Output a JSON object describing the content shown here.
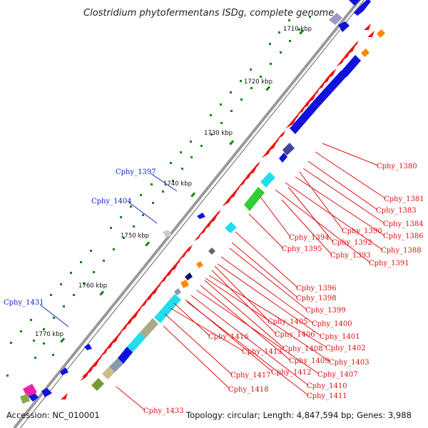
{
  "title": "Clostridium phytofermentans ISDg, complete genome",
  "footer": {
    "accession": "Accession: NC_010001",
    "summary": "Topology: circular; Length: 4,847,594 bp; Genes: 3,988"
  },
  "kbp_ticks": [
    "1710 kbp",
    "1720 kbp",
    "1730 kbp",
    "1740 kbp",
    "1750 kbp",
    "1760 kbp",
    "1770 kbp"
  ],
  "colors": {
    "forward_gene": "#ee1111",
    "reverse_gene": "#1111dd",
    "rna": "#22ddee",
    "label_forward": "#dd1111",
    "label_reverse": "#1122cc",
    "backbone": "#999999",
    "gc_dots": "#118811"
  },
  "genes_left": [
    "Cphy_1397",
    "Cphy_1404",
    "Cphy_1431"
  ],
  "genes_right": [
    "Cphy_1380",
    "Cphy_1381",
    "Cphy_1383",
    "Cphy_1384",
    "Cphy_1390",
    "Cphy_1386",
    "Cphy_1394",
    "Cphy_1392",
    "Cphy_1388",
    "Cphy_1395",
    "Cphy_1393",
    "Cphy_1391",
    "Cphy_1396",
    "Cphy_1398",
    "Cphy_1399",
    "Cphy_1405",
    "Cphy_1400",
    "Cphy_1406",
    "Cphy_1401",
    "Cphy_1416",
    "Cphy_1408",
    "Cphy_1402",
    "Cphy_1413",
    "Cphy_1409",
    "Cphy_1403",
    "Cphy_1412",
    "Cphy_1407",
    "Cphy_1417",
    "Cphy_1410",
    "Cphy_1418",
    "Cphy_1411",
    "Cphy_1433"
  ]
}
